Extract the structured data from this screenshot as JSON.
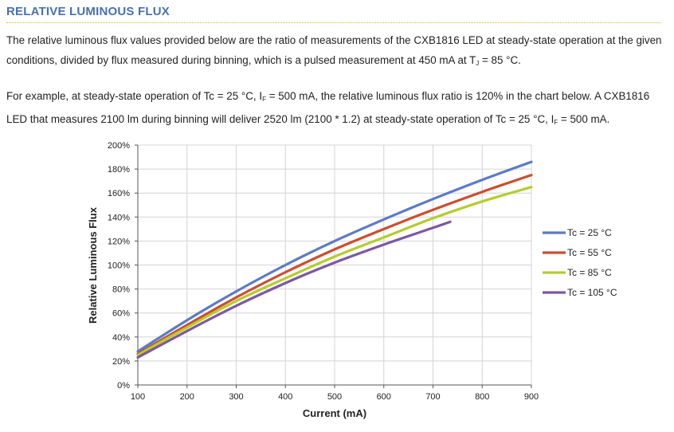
{
  "section": {
    "title": "RELATIVE LUMINOUS FLUX"
  },
  "paragraph1": {
    "before_sub": "The relative luminous flux values provided below are the ratio of measurements of the CXB1816 LED at steady-state operation at the given conditions, divided by flux measured during binning, which is a pulsed measurement at 450 mA at T",
    "sub": "J",
    "after_sub": " = 85 °C."
  },
  "paragraph2": {
    "part1": "For example, at steady-state operation of Tc = 25 °C, I",
    "sub1": "F",
    "part2": " = 500 mA, the relative luminous flux ratio is 120% in the chart below. A CXB1816 LED that measures 2100 lm during binning will deliver 2520 lm (2100 * 1.2) at steady-state operation of Tc = 25 °C, I",
    "sub2": "F",
    "part3": " = 500 mA."
  },
  "chart_data": {
    "type": "line",
    "xlabel": "Current (mA)",
    "ylabel": "Relative Luminous Flux",
    "xlim": [
      100,
      900
    ],
    "ylim": [
      0,
      200
    ],
    "xticks": [
      "100",
      "200",
      "300",
      "400",
      "500",
      "600",
      "700",
      "800",
      "900"
    ],
    "yticks": [
      "0%",
      "20%",
      "40%",
      "60%",
      "80%",
      "100%",
      "120%",
      "140%",
      "160%",
      "180%",
      "200%"
    ],
    "grid": true,
    "legend_position": "right",
    "series": [
      {
        "name": "Tc = 25 °C",
        "color": "#5b7bc8",
        "x": [
          100,
          200,
          300,
          400,
          500,
          600,
          700,
          800,
          900
        ],
        "y": [
          28,
          54,
          78,
          100,
          120,
          138,
          155,
          171,
          186
        ]
      },
      {
        "name": "Tc = 55 °C",
        "color": "#cc4e2e",
        "x": [
          100,
          200,
          300,
          400,
          500,
          600,
          700,
          800,
          900
        ],
        "y": [
          26,
          50,
          73,
          94,
          113,
          130,
          146,
          161,
          175
        ]
      },
      {
        "name": "Tc = 85 °C",
        "color": "#b5cc2e",
        "x": [
          100,
          200,
          300,
          400,
          500,
          600,
          700,
          800,
          900
        ],
        "y": [
          25,
          48,
          70,
          89,
          107,
          123,
          139,
          153,
          165
        ]
      },
      {
        "name": "Tc = 105 °C",
        "color": "#7d57a3",
        "x": [
          100,
          200,
          300,
          400,
          500,
          600,
          700,
          735
        ],
        "y": [
          23,
          45,
          66,
          85,
          102,
          117,
          131,
          136
        ]
      }
    ]
  }
}
